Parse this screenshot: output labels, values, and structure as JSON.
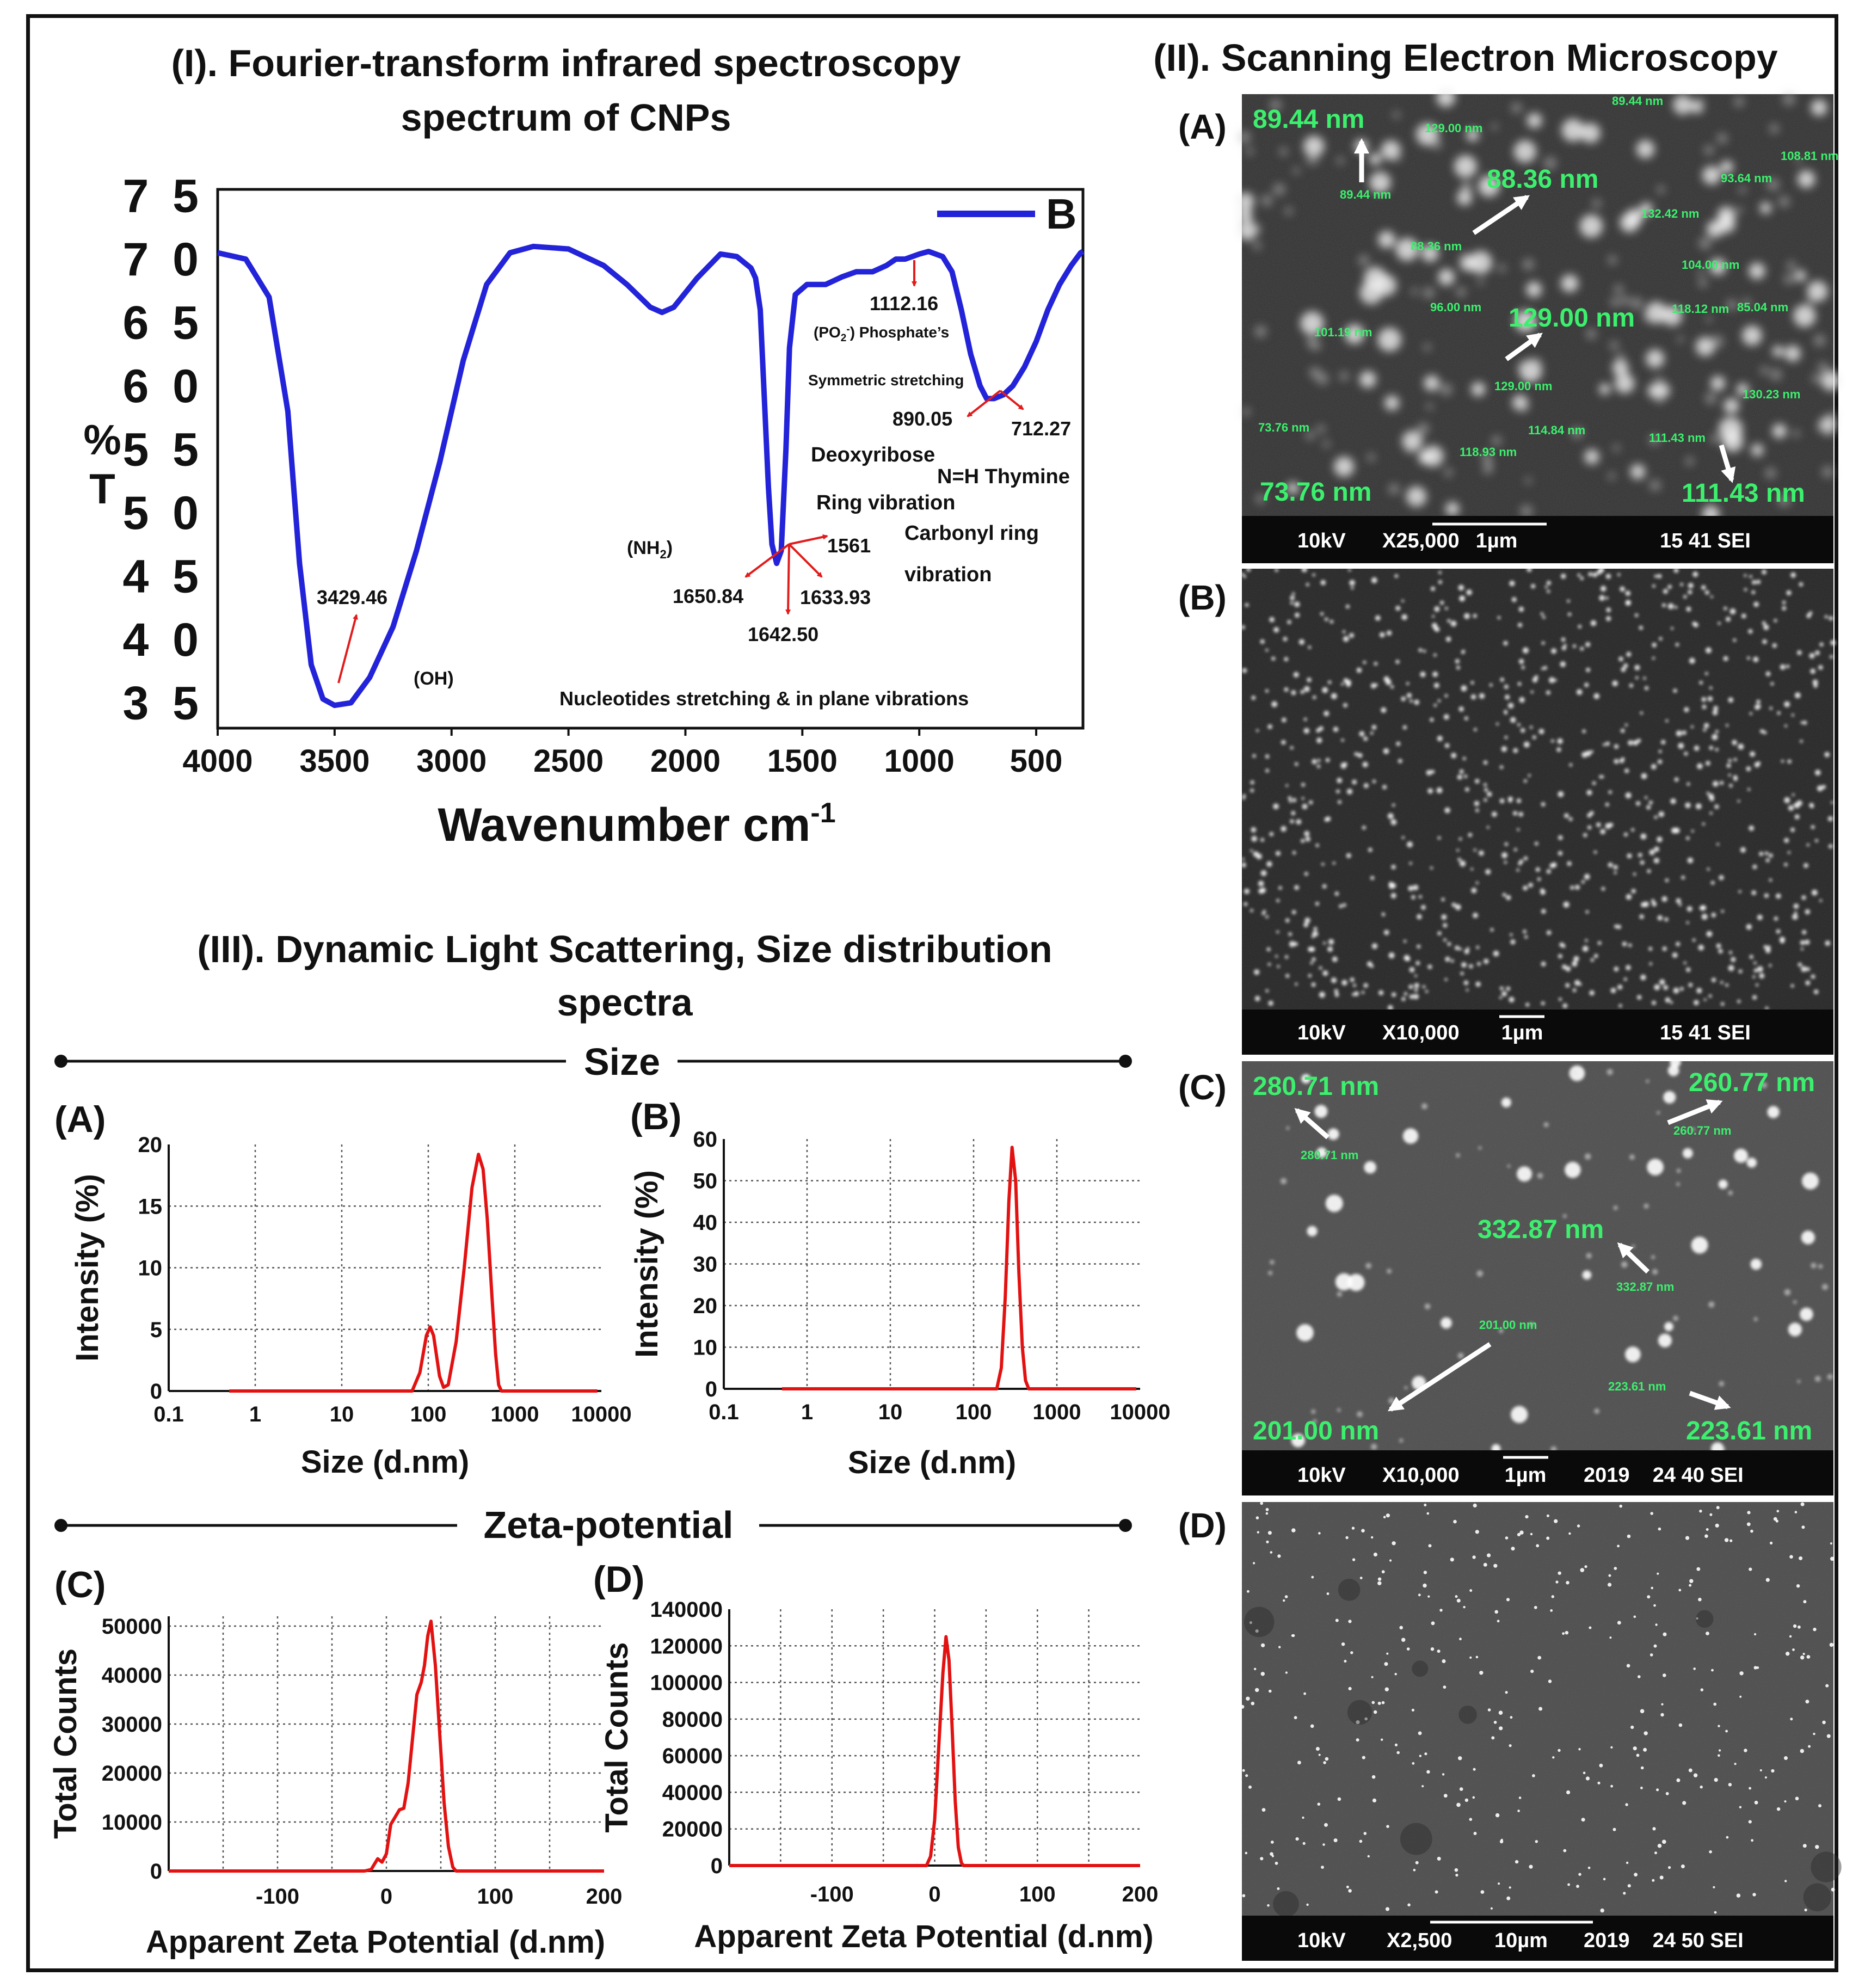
{
  "colors": {
    "ftir_line": "#2323d9",
    "annotation_arrow": "#e21b1b",
    "dls_line": "#e31212",
    "sem_label": "#3cf06e",
    "sem_bar_bg": "#0a0a0a",
    "text": "#111111"
  },
  "panels": {
    "ftir_title_line1": "(I).  Fourier-transform infrared spectroscopy",
    "ftir_title_line2": "spectrum of CNPs",
    "sem_title": "(II). Scanning Electron Microscopy",
    "dls_title_line1": "(III).  Dynamic Light Scattering, Size distribution",
    "dls_title_line2": "spectra",
    "size_section": "Size",
    "zeta_section": "Zeta-potential"
  },
  "chart_data": [
    {
      "id": "ftir",
      "type": "line",
      "title": "Fourier-transform infrared spectroscopy spectrum of CNPs",
      "xlabel": "Wavenumber cm",
      "xlabel_sup": "-1",
      "ylabel_top": "%",
      "ylabel_bottom": "T",
      "xlim": [
        4000,
        300
      ],
      "ylim": [
        33,
        75.5
      ],
      "x_ticks": [
        4000,
        3500,
        3000,
        2500,
        2000,
        1500,
        1000,
        500
      ],
      "y_ticks": [
        35,
        40,
        45,
        50,
        55,
        60,
        65,
        70,
        75
      ],
      "legend": "B",
      "series": [
        {
          "name": "B",
          "points": [
            [
              4000,
              70.5
            ],
            [
              3880,
              70
            ],
            [
              3780,
              67
            ],
            [
              3700,
              58
            ],
            [
              3650,
              46
            ],
            [
              3600,
              38
            ],
            [
              3550,
              35.3
            ],
            [
              3500,
              34.8
            ],
            [
              3430,
              35
            ],
            [
              3350,
              37
            ],
            [
              3250,
              41
            ],
            [
              3150,
              47
            ],
            [
              3050,
              54
            ],
            [
              2950,
              62
            ],
            [
              2850,
              68
            ],
            [
              2750,
              70.5
            ],
            [
              2650,
              71
            ],
            [
              2500,
              70.8
            ],
            [
              2350,
              69.5
            ],
            [
              2250,
              68
            ],
            [
              2150,
              66.2
            ],
            [
              2100,
              65.8
            ],
            [
              2050,
              66.2
            ],
            [
              1950,
              68.5
            ],
            [
              1850,
              70.4
            ],
            [
              1780,
              70.2
            ],
            [
              1720,
              69.3
            ],
            [
              1700,
              68.5
            ],
            [
              1680,
              66
            ],
            [
              1660,
              58
            ],
            [
              1645,
              52
            ],
            [
              1630,
              47.5
            ],
            [
              1610,
              46
            ],
            [
              1590,
              47
            ],
            [
              1570,
              55
            ],
            [
              1555,
              63
            ],
            [
              1530,
              67.2
            ],
            [
              1480,
              68
            ],
            [
              1400,
              68
            ],
            [
              1330,
              68.6
            ],
            [
              1270,
              69
            ],
            [
              1200,
              69
            ],
            [
              1140,
              69.5
            ],
            [
              1100,
              70
            ],
            [
              1060,
              70
            ],
            [
              1000,
              70.4
            ],
            [
              960,
              70.6
            ],
            [
              900,
              70.2
            ],
            [
              860,
              69
            ],
            [
              820,
              66
            ],
            [
              780,
              62.5
            ],
            [
              740,
              60
            ],
            [
              712,
              59
            ],
            [
              680,
              59
            ],
            [
              640,
              59.3
            ],
            [
              600,
              60
            ],
            [
              550,
              61.5
            ],
            [
              500,
              63.5
            ],
            [
              450,
              66
            ],
            [
              400,
              68
            ],
            [
              350,
              69.5
            ],
            [
              310,
              70.5
            ],
            [
              300,
              70.6
            ]
          ]
        }
      ],
      "annotations": {
        "peak_oh_value": "3429.46",
        "oh_group": "(OH)",
        "nh2_group": "(NH",
        "nh2_sub": "2",
        "nh2_close": ")",
        "peak_1650": "1650.84",
        "peak_1642": "1642.50",
        "peak_1633": "1633.93",
        "peak_1561": "1561",
        "peak_1112": "1112.16",
        "po2_a": "(PO",
        "po2_sub": "2",
        "po2_sup": "-",
        "po2_b": ") Phosphate’s",
        "symmetric": "Symmetric stretching",
        "peak_890": "890.05",
        "peak_712": "712.27",
        "deoxyribose": "Deoxyribose",
        "ring_vibration": "Ring vibration",
        "nh_thymine": "N=H Thymine",
        "carbonyl_ring": "Carbonyl ring",
        "vibration": "vibration",
        "nucleotides": "Nucleotides stretching & in plane vibrations"
      }
    },
    {
      "id": "dls_a",
      "type": "line",
      "panel_label": "(A)",
      "xlabel": "Size (d.nm)",
      "ylabel": "Intensity (%)",
      "xscale": "log",
      "xlim": [
        0.1,
        10000
      ],
      "ylim": [
        0,
        20
      ],
      "x_ticks": [
        "0.1",
        "1",
        "10",
        "100",
        "1000",
        "10000"
      ],
      "y_ticks": [
        0,
        5,
        10,
        15,
        20
      ],
      "series": [
        {
          "name": "size",
          "points": [
            [
              0.5,
              0
            ],
            [
              65,
              0
            ],
            [
              80,
              1.5
            ],
            [
              95,
              4.5
            ],
            [
              105,
              5.2
            ],
            [
              115,
              4.5
            ],
            [
              135,
              1.2
            ],
            [
              150,
              0.3
            ],
            [
              170,
              0.5
            ],
            [
              210,
              4
            ],
            [
              260,
              10
            ],
            [
              320,
              16.5
            ],
            [
              380,
              19.2
            ],
            [
              430,
              18
            ],
            [
              480,
              14
            ],
            [
              540,
              8
            ],
            [
              600,
              3
            ],
            [
              650,
              0.5
            ],
            [
              700,
              0
            ],
            [
              9000,
              0
            ]
          ]
        }
      ]
    },
    {
      "id": "dls_b",
      "type": "line",
      "panel_label": "(B)",
      "xlabel": "Size (d.nm)",
      "ylabel": "Intensity (%)",
      "xscale": "log",
      "xlim": [
        0.1,
        10000
      ],
      "ylim": [
        0,
        60
      ],
      "x_ticks": [
        "0.1",
        "1",
        "10",
        "100",
        "1000",
        "10000"
      ],
      "y_ticks": [
        0,
        10,
        20,
        30,
        40,
        50,
        60
      ],
      "series": [
        {
          "name": "size",
          "points": [
            [
              0.5,
              0
            ],
            [
              190,
              0
            ],
            [
              215,
              5
            ],
            [
              240,
              22
            ],
            [
              265,
              45
            ],
            [
              290,
              58
            ],
            [
              320,
              50
            ],
            [
              350,
              28
            ],
            [
              385,
              10
            ],
            [
              420,
              2
            ],
            [
              460,
              0
            ],
            [
              9000,
              0
            ]
          ]
        }
      ]
    },
    {
      "id": "zeta_c",
      "type": "line",
      "panel_label": "(C)",
      "xlabel": "Apparent Zeta Potential (d.nm)",
      "ylabel": "Total Counts",
      "xlim": [
        -200,
        200
      ],
      "ylim": [
        0,
        52000
      ],
      "x_ticks": [
        -100,
        0,
        100,
        200
      ],
      "y_ticks": [
        0,
        10000,
        20000,
        30000,
        40000,
        50000
      ],
      "series": [
        {
          "name": "zeta",
          "points": [
            [
              -200,
              0
            ],
            [
              -20,
              0
            ],
            [
              -14,
              300
            ],
            [
              -8,
              2500
            ],
            [
              -4,
              1800
            ],
            [
              0,
              3500
            ],
            [
              4,
              9500
            ],
            [
              8,
              11000
            ],
            [
              12,
              12500
            ],
            [
              16,
              12800
            ],
            [
              20,
              18000
            ],
            [
              24,
              27000
            ],
            [
              28,
              36000
            ],
            [
              32,
              38500
            ],
            [
              35,
              42000
            ],
            [
              38,
              48000
            ],
            [
              41,
              51000
            ],
            [
              45,
              42000
            ],
            [
              49,
              28000
            ],
            [
              53,
              14000
            ],
            [
              57,
              5000
            ],
            [
              61,
              800
            ],
            [
              64,
              0
            ],
            [
              200,
              0
            ]
          ]
        }
      ]
    },
    {
      "id": "zeta_d",
      "type": "line",
      "panel_label": "(D)",
      "xlabel": "Apparent Zeta Potential (d.nm)",
      "ylabel": "Total Counts",
      "xlim": [
        -200,
        200
      ],
      "ylim": [
        0,
        140000
      ],
      "x_ticks": [
        -100,
        0,
        100,
        200
      ],
      "y_ticks": [
        0,
        20000,
        40000,
        60000,
        80000,
        100000,
        120000,
        140000
      ],
      "series": [
        {
          "name": "zeta",
          "points": [
            [
              -200,
              0
            ],
            [
              -8,
              0
            ],
            [
              -4,
              5000
            ],
            [
              0,
              25000
            ],
            [
              4,
              65000
            ],
            [
              8,
              105000
            ],
            [
              11,
              125000
            ],
            [
              14,
              112000
            ],
            [
              17,
              75000
            ],
            [
              20,
              35000
            ],
            [
              23,
              10000
            ],
            [
              26,
              1500
            ],
            [
              28,
              0
            ],
            [
              200,
              0
            ]
          ]
        }
      ]
    }
  ],
  "sem": {
    "a": {
      "label": "(A)",
      "bar": {
        "kv": "10kV",
        "mag": "X25,000",
        "scale": "1µm",
        "info": "15 41 SEI"
      },
      "big_labels": [
        "89.44 nm",
        "88.36 nm",
        "129.00 nm",
        "73.76 nm",
        "111.43 nm"
      ],
      "small_labels": [
        "89.44 nm",
        "129.00 nm",
        "89.44 nm",
        "108.81 nm",
        "93.64 nm",
        "132.42 nm",
        "88.36 nm",
        "104.00 nm",
        "96.00 nm",
        "118.12 nm",
        "85.04 nm",
        "101.19 nm",
        "129.00 nm",
        "130.23 nm",
        "73.76 nm",
        "114.84 nm",
        "118.93 nm",
        "111.43 nm"
      ]
    },
    "b": {
      "label": "(B)",
      "bar": {
        "kv": "10kV",
        "mag": "X10,000",
        "scale": "1µm",
        "info": "15 41 SEI"
      }
    },
    "c": {
      "label": "(C)",
      "bar": {
        "kv": "10kV",
        "mag": "X10,000",
        "scale": "1µm",
        "info": "2019    24 40 SEI"
      },
      "big_labels": [
        "280.71 nm",
        "260.77 nm",
        "332.87 nm",
        "201.00 nm",
        "223.61 nm"
      ],
      "small_labels": [
        "280.71 nm",
        "260.77 nm",
        "332.87 nm",
        "201.00 nm",
        "223.61 nm"
      ]
    },
    "d": {
      "label": "(D)",
      "bar": {
        "kv": "10kV",
        "mag": "X2,500",
        "scale": "10µm",
        "info": "2019    24 50 SEI"
      }
    }
  }
}
